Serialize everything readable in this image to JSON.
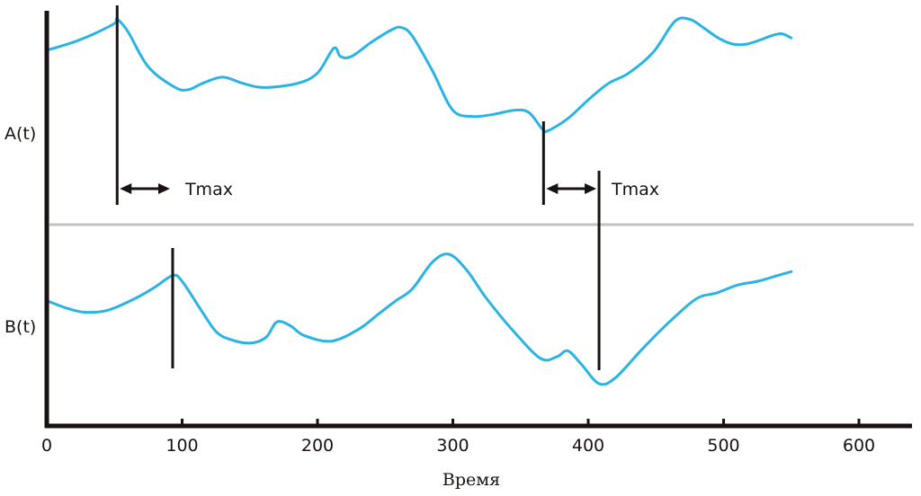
{
  "chart_data": {
    "type": "line",
    "xlabel": "Время",
    "xlim": [
      0,
      600
    ],
    "x_ticks": [
      "0",
      "100",
      "200",
      "300",
      "400",
      "500",
      "600"
    ],
    "panels": [
      {
        "name": "A(t)",
        "ylabel": "A(t)",
        "series": [
          {
            "name": "A(t)",
            "x": [
              0,
              20,
              35,
              50,
              52,
              60,
              75,
              95,
              105,
              115,
              130,
              145,
              160,
              185,
              200,
              212,
              217,
              225,
              240,
              255,
              262,
              270,
              285,
              300,
              315,
              330,
              345,
              356,
              366,
              370,
              385,
              400,
              415,
              430,
              448,
              464,
              475,
              485,
              496,
              507,
              517,
              527,
              535,
              543,
              550
            ],
            "y": [
              0.8,
              0.84,
              0.88,
              0.93,
              0.95,
              0.89,
              0.72,
              0.62,
              0.61,
              0.64,
              0.67,
              0.64,
              0.62,
              0.64,
              0.69,
              0.81,
              0.77,
              0.77,
              0.84,
              0.9,
              0.91,
              0.87,
              0.7,
              0.51,
              0.48,
              0.49,
              0.51,
              0.5,
              0.42,
              0.41,
              0.47,
              0.56,
              0.64,
              0.69,
              0.79,
              0.94,
              0.95,
              0.91,
              0.86,
              0.83,
              0.83,
              0.85,
              0.87,
              0.88,
              0.86
            ]
          }
        ],
        "markers": [
          {
            "x": 52,
            "label": ""
          },
          {
            "x": 367,
            "label": ""
          }
        ]
      },
      {
        "name": "B(t)",
        "ylabel": "B(t)",
        "series": [
          {
            "name": "B(t)",
            "x": [
              0,
              15,
              28,
              45,
              65,
              80,
              93,
              100,
              115,
              125,
              135,
              150,
              162,
              170,
              180,
              190,
              210,
              230,
              245,
              258,
              270,
              285,
              297,
              310,
              325,
              345,
              365,
              377,
              385,
              395,
              408,
              420,
              440,
              460,
              480,
              495,
              510,
              525,
              540,
              550
            ],
            "y": [
              0.63,
              0.59,
              0.57,
              0.58,
              0.64,
              0.7,
              0.76,
              0.73,
              0.57,
              0.47,
              0.43,
              0.41,
              0.44,
              0.52,
              0.5,
              0.45,
              0.42,
              0.48,
              0.56,
              0.63,
              0.69,
              0.83,
              0.87,
              0.79,
              0.64,
              0.47,
              0.33,
              0.34,
              0.37,
              0.3,
              0.2,
              0.23,
              0.38,
              0.52,
              0.64,
              0.67,
              0.71,
              0.73,
              0.76,
              0.78
            ]
          }
        ],
        "markers": [
          {
            "x": 93,
            "label": ""
          },
          {
            "x": 408,
            "label": ""
          }
        ]
      }
    ],
    "annotations": [
      {
        "text": "Tmax",
        "from_x": 52,
        "to_x": 93
      },
      {
        "text": "Tmax",
        "from_x": 367,
        "to_x": 408
      }
    ],
    "grid": false,
    "legend": "none",
    "colors": {
      "line": "#2ab4e4",
      "axis": "#1a1210",
      "divider": "#c0c0c0",
      "marker": "#1a1210"
    }
  }
}
